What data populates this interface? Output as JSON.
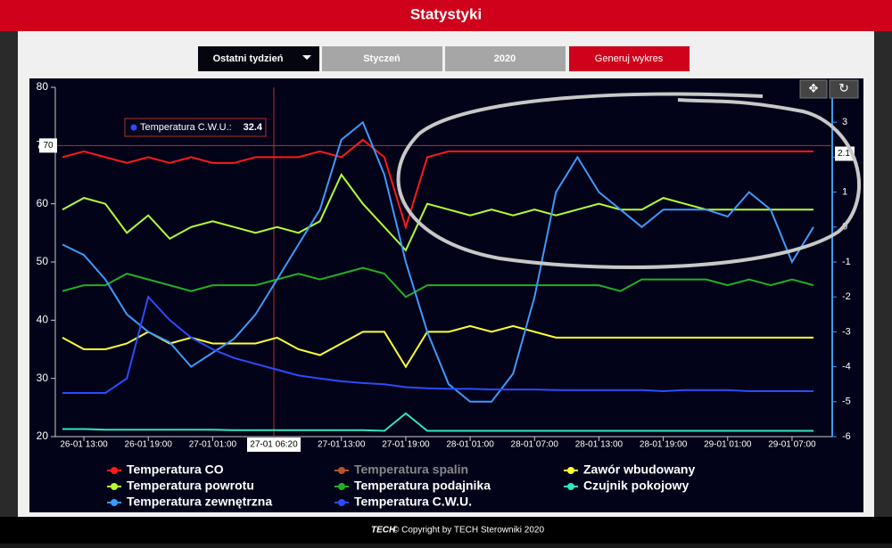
{
  "header": {
    "title": "Statystyki"
  },
  "controls": {
    "range": "Ostatni tydzień",
    "month": "Styczeń",
    "year": "2020",
    "button": "Generuj wykres"
  },
  "chart_data": {
    "type": "line",
    "categories": [
      null,
      "26-01 13:00",
      null,
      null,
      "26-01 19:00",
      null,
      null,
      "27-01 01:00",
      null,
      null,
      null,
      null,
      null,
      "27-01 13:00",
      null,
      null,
      "27-01 19:00",
      null,
      null,
      "28-01 01:00",
      null,
      null,
      "28-01 07:00",
      null,
      null,
      "28-01 13:00",
      null,
      null,
      "28-01 19:00",
      null,
      null,
      "29-01 01:00",
      null,
      null,
      "29-01 07:00",
      null
    ],
    "ylim": [
      20,
      80
    ],
    "yticks": [
      20,
      30,
      40,
      50,
      60,
      70,
      80
    ],
    "y2lim": [
      -6,
      4
    ],
    "y2ticks": [
      -6,
      -5,
      -4,
      -3,
      -2,
      -1,
      0,
      1,
      2,
      3
    ],
    "series": [
      {
        "name": "Temperatura CO",
        "color": "#ff1a1a",
        "values": [
          68,
          69,
          68,
          67,
          68,
          67,
          68,
          67,
          67,
          68,
          68,
          68,
          69,
          68,
          71,
          68,
          56,
          68,
          69,
          69,
          69,
          69,
          69,
          69,
          69,
          69,
          69,
          69,
          69,
          69,
          69,
          69,
          69,
          69,
          69,
          69
        ]
      },
      {
        "name": "Temperatura spalin",
        "color": "#b5522b",
        "visible": false
      },
      {
        "name": "Zawór wbudowany",
        "color": "#ffff33",
        "values": [
          37,
          35,
          35,
          36,
          38,
          36,
          37,
          36,
          36,
          36,
          37,
          35,
          34,
          36,
          38,
          38,
          32,
          38,
          38,
          39,
          38,
          39,
          38,
          37,
          37,
          37,
          37,
          37,
          37,
          37,
          37,
          37,
          37,
          37,
          37,
          37
        ]
      },
      {
        "name": "Temperatura powrotu",
        "color": "#b3ff33",
        "values": [
          59,
          61,
          60,
          55,
          58,
          54,
          56,
          57,
          56,
          55,
          56,
          55,
          57,
          65,
          60,
          56,
          52,
          60,
          59,
          58,
          59,
          58,
          59,
          58,
          59,
          60,
          59,
          59,
          61,
          60,
          59,
          59,
          59,
          59,
          59,
          59
        ]
      },
      {
        "name": "Temperatura podajnika",
        "color": "#22b022",
        "values": [
          45,
          46,
          46,
          48,
          47,
          46,
          45,
          46,
          46,
          46,
          47,
          48,
          47,
          48,
          49,
          48,
          44,
          46,
          46,
          46,
          46,
          46,
          46,
          46,
          46,
          46,
          45,
          47,
          47,
          47,
          47,
          46,
          47,
          46,
          47,
          46
        ]
      },
      {
        "name": "Czujnik pokojowy",
        "color": "#33e6c0",
        "values": [
          21.3,
          21.3,
          21.2,
          21.2,
          21.2,
          21.2,
          21.2,
          21.2,
          21.1,
          21.1,
          21.1,
          21.1,
          21.1,
          21.1,
          21.1,
          21,
          24,
          21,
          21,
          21,
          21,
          21,
          21,
          21,
          21,
          21,
          21,
          21,
          21,
          21,
          21,
          21,
          21,
          21,
          21,
          21
        ]
      },
      {
        "name": "Temperatura zewnętrzna",
        "color": "#3d9aff",
        "axis": "y2",
        "values": [
          -0.5,
          -0.8,
          -1.5,
          -2.5,
          -3,
          -3.3,
          -4,
          -3.6,
          -3.2,
          -2.5,
          -1.5,
          -0.5,
          0.5,
          2.5,
          3,
          1.5,
          -1,
          -3,
          -4.5,
          -5,
          -5,
          -4.2,
          -2,
          1,
          2,
          1,
          0.5,
          0,
          0.5,
          0.5,
          0.5,
          0.3,
          1,
          0.5,
          -1,
          0
        ]
      },
      {
        "name": "Temperatura C.W.U.",
        "color": "#2a4cff",
        "values": [
          27.5,
          27.5,
          27.5,
          30,
          44,
          40,
          37,
          35,
          33.5,
          32.5,
          31.5,
          30.5,
          30,
          29.5,
          29.2,
          29,
          28.5,
          28.3,
          28.2,
          28.2,
          28.1,
          28.1,
          28.1,
          28,
          28,
          28,
          28,
          28,
          27.8,
          28,
          28,
          28,
          27.8,
          27.8,
          27.8,
          27.8
        ]
      }
    ],
    "crosshair": {
      "x_label": "27-01 06:20",
      "y": 70,
      "y2": 2.1
    },
    "tooltip": {
      "label": "Temperatura C.W.U.:",
      "value": 32.4
    }
  },
  "footer": {
    "logo": "TECH",
    "text": "© Copyright by TECH Sterowniki 2020"
  }
}
